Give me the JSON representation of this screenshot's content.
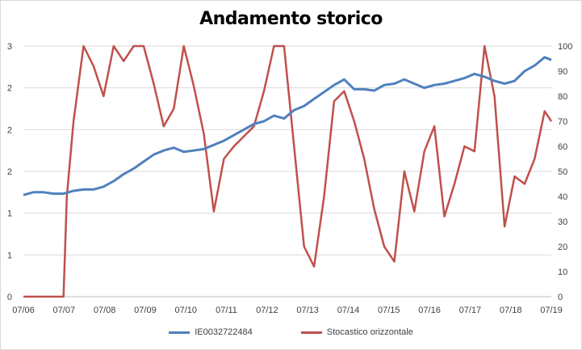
{
  "chart_data": {
    "type": "line",
    "title": "Andamento storico",
    "x_ticks": [
      "07/06",
      "07/07",
      "07/08",
      "07/09",
      "07/10",
      "07/11",
      "07/12",
      "07/13",
      "07/14",
      "07/15",
      "07/16",
      "07/17",
      "07/18",
      "07/19"
    ],
    "y_left_ticks": [
      "0",
      "1",
      "1",
      "2",
      "2",
      "2",
      "3"
    ],
    "y_right_ticks": [
      "0",
      "10",
      "20",
      "30",
      "40",
      "50",
      "60",
      "70",
      "80",
      "90",
      "100"
    ],
    "y_right_range": [
      0,
      100
    ],
    "grid": "horizontal",
    "legend_position": "bottom",
    "series": [
      {
        "name": "IE0032722484",
        "axis": "left",
        "color": "#4f81bd",
        "x": [
          "2006-07",
          "2006-10",
          "2007-01",
          "2007-04",
          "2007-07",
          "2007-10",
          "2008-01",
          "2008-04",
          "2008-07",
          "2008-10",
          "2009-01",
          "2009-04",
          "2009-07",
          "2009-10",
          "2010-01",
          "2010-04",
          "2010-07",
          "2010-10",
          "2011-01",
          "2011-04",
          "2011-07",
          "2011-10",
          "2012-01",
          "2012-04",
          "2012-07",
          "2012-10",
          "2013-01",
          "2013-04",
          "2013-07",
          "2013-10",
          "2014-01",
          "2014-04",
          "2014-07",
          "2014-10",
          "2015-01",
          "2015-04",
          "2015-07",
          "2015-10",
          "2016-01",
          "2016-04",
          "2016-07",
          "2016-10",
          "2017-01",
          "2017-04",
          "2017-07",
          "2017-10",
          "2018-01",
          "2018-04",
          "2018-07",
          "2018-10",
          "2019-01",
          "2019-04",
          "2019-07",
          "2019-09"
        ],
        "y": [
          1.23,
          1.25,
          1.25,
          1.24,
          1.24,
          1.26,
          1.27,
          1.27,
          1.29,
          1.33,
          1.38,
          1.42,
          1.47,
          1.52,
          1.55,
          1.57,
          1.54,
          1.55,
          1.56,
          1.59,
          1.62,
          1.66,
          1.7,
          1.74,
          1.76,
          1.8,
          1.78,
          1.84,
          1.87,
          1.92,
          1.97,
          2.02,
          2.06,
          1.99,
          1.99,
          1.98,
          2.02,
          2.03,
          2.06,
          2.03,
          2.0,
          2.02,
          2.03,
          2.05,
          2.07,
          2.1,
          2.08,
          2.05,
          2.03,
          2.05,
          2.12,
          2.16,
          2.22,
          2.2
        ]
      },
      {
        "name": "Stocastico orizzontale",
        "axis": "right",
        "color": "#c0504d",
        "x": [
          "2006-07",
          "2006-10",
          "2007-01",
          "2007-04",
          "2007-07",
          "2007-08",
          "2007-10",
          "2008-01",
          "2008-04",
          "2008-07",
          "2008-10",
          "2009-01",
          "2009-04",
          "2009-07",
          "2009-10",
          "2010-01",
          "2010-04",
          "2010-07",
          "2010-10",
          "2011-01",
          "2011-04",
          "2011-07",
          "2011-10",
          "2012-01",
          "2012-04",
          "2012-07",
          "2012-10",
          "2013-01",
          "2013-04",
          "2013-07",
          "2013-10",
          "2014-01",
          "2014-04",
          "2014-07",
          "2014-10",
          "2015-01",
          "2015-04",
          "2015-07",
          "2015-10",
          "2016-01",
          "2016-04",
          "2016-07",
          "2016-10",
          "2017-01",
          "2017-04",
          "2017-07",
          "2017-10",
          "2018-01",
          "2018-04",
          "2018-07",
          "2018-10",
          "2019-01",
          "2019-04",
          "2019-07",
          "2019-09"
        ],
        "y": [
          0,
          0,
          0,
          0,
          0,
          40,
          70,
          100,
          92,
          80,
          100,
          94,
          100,
          100,
          85,
          68,
          75,
          100,
          84,
          65,
          34,
          55,
          60,
          64,
          68,
          82,
          100,
          100,
          60,
          20,
          12,
          40,
          78,
          82,
          70,
          55,
          35,
          20,
          14,
          50,
          34,
          58,
          68,
          32,
          45,
          60,
          58,
          100,
          80,
          28,
          48,
          45,
          55,
          74,
          70
        ]
      }
    ]
  }
}
